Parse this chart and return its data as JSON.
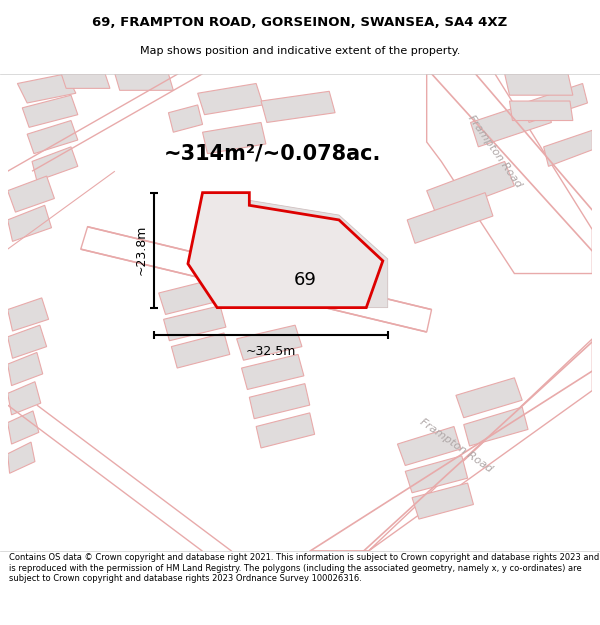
{
  "title_line1": "69, FRAMPTON ROAD, GORSEINON, SWANSEA, SA4 4XZ",
  "title_line2": "Map shows position and indicative extent of the property.",
  "footer_text": "Contains OS data © Crown copyright and database right 2021. This information is subject to Crown copyright and database rights 2023 and is reproduced with the permission of HM Land Registry. The polygons (including the associated geometry, namely x, y co-ordinates) are subject to Crown copyright and database rights 2023 Ordnance Survey 100026316.",
  "area_label": "~314m²/~0.078ac.",
  "width_label": "~32.5m",
  "height_label": "~23.8m",
  "property_number": "69",
  "map_bg": "#f7f5f5",
  "road_fill": "#ffffff",
  "road_edge": "#e8aaaa",
  "road_inner_edge": "#e8aaaa",
  "building_fill": "#e0dcdc",
  "building_edge": "#c8b8b8",
  "property_fill": "#ede8e8",
  "property_edge": "#dd0000",
  "block_fill": "#e4e0e0",
  "block_edge": "#d0c0c0"
}
